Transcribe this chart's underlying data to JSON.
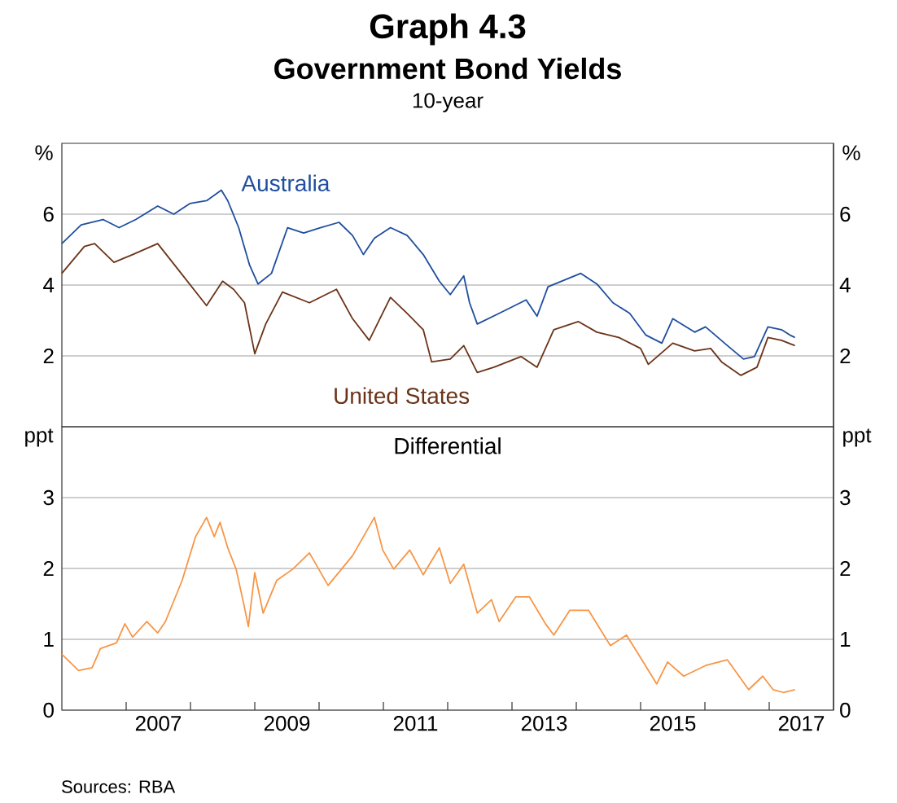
{
  "chart_data": [
    {
      "type": "line",
      "title": "Graph 4.3",
      "subtitle": "Government Bond Yields",
      "annotations": [
        "10-year"
      ],
      "ylabel": "%",
      "y2label": "%",
      "xlim": [
        2006,
        2018
      ],
      "ylim": [
        0,
        8
      ],
      "yticks": [
        2,
        4,
        6
      ],
      "y2lim": [
        0,
        8
      ],
      "y2ticks": [
        2,
        4,
        6
      ],
      "tick_labels": "y",
      "grid": "y",
      "series": [
        {
          "name": "Australia",
          "color": "#1f4e9e",
          "x": [
            2006.0,
            2006.3,
            2006.64,
            2006.89,
            2007.15,
            2007.49,
            2007.74,
            2007.99,
            2008.25,
            2008.48,
            2008.58,
            2008.75,
            2008.92,
            2009.05,
            2009.26,
            2009.51,
            2009.76,
            2010.02,
            2010.31,
            2010.52,
            2010.69,
            2010.86,
            2011.11,
            2011.37,
            2011.62,
            2011.87,
            2012.04,
            2012.25,
            2012.34,
            2012.46,
            2012.8,
            2013.22,
            2013.39,
            2013.56,
            2014.07,
            2014.32,
            2014.57,
            2014.83,
            2015.08,
            2015.33,
            2015.5,
            2015.84,
            2016.01,
            2016.35,
            2016.6,
            2016.77,
            2016.98,
            2017.19,
            2017.32,
            2017.4
          ],
          "values": [
            5.17,
            5.7,
            5.85,
            5.62,
            5.85,
            6.23,
            6.0,
            6.3,
            6.38,
            6.68,
            6.38,
            5.62,
            4.56,
            4.03,
            4.33,
            5.62,
            5.47,
            5.62,
            5.77,
            5.4,
            4.86,
            5.32,
            5.62,
            5.4,
            4.86,
            4.11,
            3.73,
            4.26,
            3.5,
            2.9,
            3.2,
            3.58,
            3.12,
            3.95,
            4.33,
            4.03,
            3.5,
            3.2,
            2.59,
            2.36,
            3.05,
            2.67,
            2.82,
            2.29,
            1.91,
            1.98,
            2.82,
            2.74,
            2.59,
            2.52
          ]
        },
        {
          "name": "United States",
          "color": "#6b3318",
          "x": [
            2006.0,
            2006.35,
            2006.51,
            2006.81,
            2007.1,
            2007.49,
            2007.82,
            2008.25,
            2008.5,
            2008.67,
            2008.84,
            2009.0,
            2009.17,
            2009.43,
            2009.85,
            2010.27,
            2010.52,
            2010.78,
            2011.11,
            2011.37,
            2011.62,
            2011.75,
            2012.04,
            2012.25,
            2012.46,
            2012.72,
            2013.14,
            2013.39,
            2013.65,
            2014.03,
            2014.32,
            2014.66,
            2015.0,
            2015.12,
            2015.5,
            2015.84,
            2016.09,
            2016.26,
            2016.56,
            2016.81,
            2016.98,
            2017.19,
            2017.4
          ],
          "values": [
            4.33,
            5.09,
            5.17,
            4.64,
            4.86,
            5.17,
            4.41,
            3.42,
            4.11,
            3.88,
            3.5,
            2.06,
            2.9,
            3.8,
            3.5,
            3.88,
            3.05,
            2.44,
            3.65,
            3.2,
            2.74,
            1.83,
            1.91,
            2.29,
            1.53,
            1.68,
            1.98,
            1.68,
            2.74,
            2.97,
            2.67,
            2.52,
            2.21,
            1.76,
            2.36,
            2.14,
            2.21,
            1.83,
            1.45,
            1.68,
            2.52,
            2.44,
            2.29
          ]
        }
      ]
    },
    {
      "type": "line",
      "title": "Differential",
      "annotations": [
        "Sources: RBA"
      ],
      "ylabel": "ppt",
      "y2label": "ppt",
      "xlim": [
        2006,
        2018
      ],
      "ylim": [
        0,
        4
      ],
      "yticks": [
        0,
        1,
        2,
        3
      ],
      "y2lim": [
        0,
        4
      ],
      "y2ticks": [
        0,
        1,
        2,
        3
      ],
      "grid": "y",
      "xticks": [
        {
          "value": 2007,
          "label": null
        },
        {
          "value": 2008,
          "label": null
        },
        {
          "value": 2009,
          "label": null
        },
        {
          "value": 2010,
          "label": null
        },
        {
          "value": 2011,
          "label": null
        },
        {
          "value": 2012,
          "label": null
        },
        {
          "value": 2013,
          "label": null
        },
        {
          "value": 2014,
          "label": null
        },
        {
          "value": 2015,
          "label": null
        },
        {
          "value": 2016,
          "label": null
        },
        {
          "value": 2017,
          "label": null
        },
        {
          "value": 2007.5,
          "label": "2007"
        },
        {
          "value": 2009.5,
          "label": "2009"
        },
        {
          "value": 2011.5,
          "label": "2011"
        },
        {
          "value": 2013.5,
          "label": "2013"
        },
        {
          "value": 2015.5,
          "label": "2015"
        },
        {
          "value": 2017.5,
          "label": "2017"
        }
      ],
      "series": [
        {
          "color": "#f79646",
          "x": [
            2006.0,
            2006.26,
            2006.47,
            2006.6,
            2006.85,
            2006.98,
            2007.1,
            2007.32,
            2007.49,
            2007.61,
            2007.87,
            2008.08,
            2008.25,
            2008.37,
            2008.46,
            2008.58,
            2008.71,
            2008.84,
            2008.9,
            2009.0,
            2009.13,
            2009.34,
            2009.59,
            2009.85,
            2010.14,
            2010.52,
            2010.86,
            2010.99,
            2011.16,
            2011.41,
            2011.62,
            2011.87,
            2012.04,
            2012.25,
            2012.46,
            2012.68,
            2012.8,
            2013.06,
            2013.27,
            2013.52,
            2013.65,
            2013.9,
            2014.19,
            2014.53,
            2014.78,
            2015.04,
            2015.25,
            2015.42,
            2015.67,
            2016.01,
            2016.35,
            2016.68,
            2016.9,
            2017.06,
            2017.22,
            2017.4
          ],
          "values": [
            0.79,
            0.56,
            0.6,
            0.87,
            0.95,
            1.22,
            1.03,
            1.25,
            1.09,
            1.25,
            1.83,
            2.45,
            2.72,
            2.45,
            2.65,
            2.29,
            1.99,
            1.45,
            1.18,
            1.94,
            1.37,
            1.83,
            1.99,
            2.22,
            1.76,
            2.18,
            2.72,
            2.26,
            1.99,
            2.26,
            1.91,
            2.29,
            1.79,
            2.06,
            1.37,
            1.56,
            1.25,
            1.6,
            1.6,
            1.22,
            1.06,
            1.41,
            1.41,
            0.91,
            1.06,
            0.68,
            0.37,
            0.68,
            0.48,
            0.63,
            0.71,
            0.29,
            0.48,
            0.29,
            0.25,
            0.29
          ]
        }
      ]
    }
  ]
}
